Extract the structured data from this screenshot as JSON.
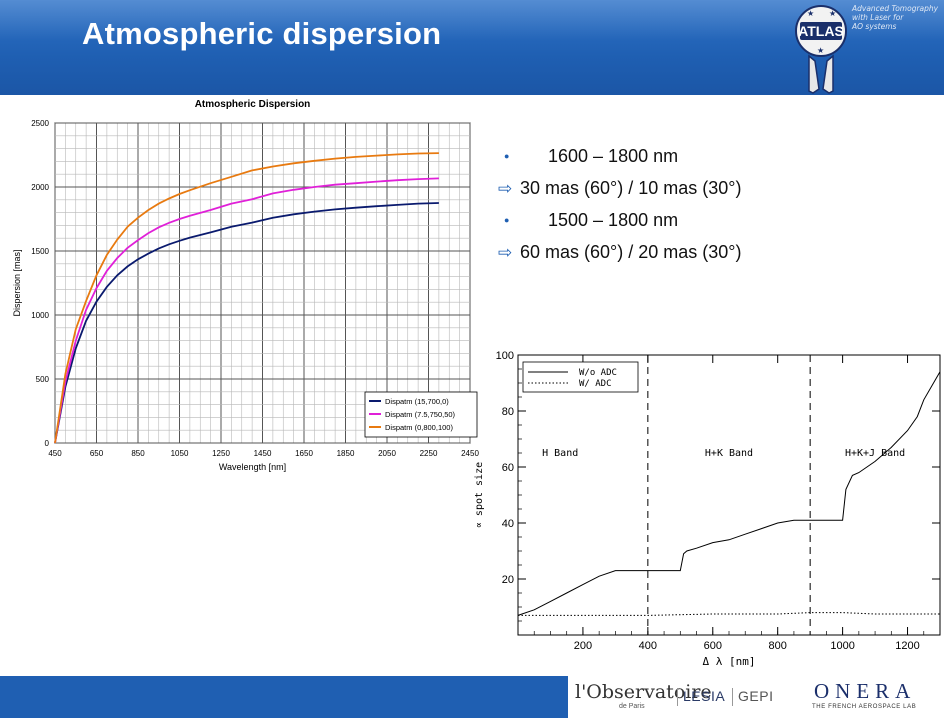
{
  "slide": {
    "title": "Atmospheric dispersion",
    "logo_tagline": [
      "Advanced Tomography",
      "with Laser for",
      "AO systems"
    ],
    "logo_text": "ATLAS",
    "bullets": [
      {
        "type": "bullet",
        "text": "1600 – 1800 nm"
      },
      {
        "type": "arrow",
        "text": "30 mas (60°) / 10 mas (30°)"
      },
      {
        "type": "bullet",
        "text": "1500 – 1800 nm"
      },
      {
        "type": "arrow",
        "text": "60 mas (60°) / 20 mas (30°)"
      }
    ],
    "footer": {
      "observatoire": "l'Observatoire",
      "observatoire_sub": "de Paris",
      "lesia": "LESIA",
      "gepi": "GEPI",
      "onera": "ONERA",
      "onera_sub": "THE FRENCH AEROSPACE LAB"
    },
    "colors": {
      "header": "#1f5fb2",
      "accent": "#1f5fb2"
    }
  },
  "chart_data": [
    {
      "type": "line",
      "title": "Atmospheric Dispersion",
      "xlabel": "Wavelength [nm]",
      "ylabel": "Dispersion [mas]",
      "xlim": [
        450,
        2450
      ],
      "ylim": [
        0,
        2500
      ],
      "xticks": [
        450,
        650,
        850,
        1050,
        1250,
        1450,
        1650,
        1850,
        2050,
        2250,
        2450
      ],
      "yticks": [
        0,
        500,
        1000,
        1500,
        2000,
        2500
      ],
      "grid": true,
      "legend_position": "bottom-right",
      "x": [
        450,
        500,
        550,
        600,
        650,
        700,
        750,
        800,
        850,
        900,
        950,
        1000,
        1050,
        1100,
        1200,
        1300,
        1400,
        1500,
        1600,
        1700,
        1800,
        1900,
        2000,
        2100,
        2200,
        2300
      ],
      "series": [
        {
          "name": "Dispatm (15,700,0)",
          "color": "#0a1a6e",
          "values": [
            0,
            440,
            740,
            955,
            1105,
            1220,
            1310,
            1380,
            1435,
            1480,
            1520,
            1552,
            1580,
            1605,
            1645,
            1690,
            1722,
            1760,
            1787,
            1808,
            1825,
            1838,
            1850,
            1860,
            1870,
            1875
          ]
        },
        {
          "name": "Dispatm (7.5,750,50)",
          "color": "#e020d8",
          "values": [
            0,
            480,
            800,
            1040,
            1210,
            1345,
            1445,
            1525,
            1585,
            1640,
            1685,
            1720,
            1750,
            1775,
            1820,
            1870,
            1905,
            1950,
            1978,
            2000,
            2018,
            2030,
            2042,
            2053,
            2062,
            2067
          ]
        },
        {
          "name": "Dispatm (0,800,100)",
          "color": "#e87a10",
          "values": [
            0,
            540,
            890,
            1110,
            1310,
            1470,
            1590,
            1690,
            1760,
            1820,
            1870,
            1910,
            1945,
            1975,
            2030,
            2080,
            2130,
            2160,
            2185,
            2205,
            2222,
            2235,
            2245,
            2255,
            2262,
            2265
          ]
        }
      ]
    },
    {
      "type": "line",
      "title": "",
      "xlabel": "Δ λ [nm]",
      "ylabel": "∝ spot size",
      "xlim": [
        0,
        1300
      ],
      "ylim": [
        0,
        100
      ],
      "xticks": [
        200,
        400,
        600,
        800,
        1000,
        1200
      ],
      "yticks": [
        20,
        40,
        60,
        80,
        100
      ],
      "legend_position": "top-left",
      "regions": [
        {
          "label": "H Band",
          "x": 130
        },
        {
          "label": "H+K Band",
          "x": 650
        },
        {
          "label": "H+K+J Band",
          "x": 1100
        }
      ],
      "vlines": [
        400,
        900
      ],
      "series": [
        {
          "name": "W/o ADC",
          "style": "solid",
          "color": "#000000",
          "x": [
            0,
            50,
            100,
            150,
            200,
            250,
            300,
            350,
            400,
            450,
            500,
            510,
            520,
            550,
            600,
            650,
            700,
            750,
            800,
            850,
            900,
            950,
            1000,
            1010,
            1030,
            1050,
            1100,
            1150,
            1200,
            1230,
            1250,
            1280,
            1300
          ],
          "values": [
            7,
            9,
            12,
            15,
            18,
            21,
            23,
            23,
            23,
            23,
            23,
            29,
            30,
            31,
            33,
            34,
            36,
            38,
            40,
            41,
            41,
            41,
            41,
            52,
            57,
            58,
            62,
            67,
            73,
            78,
            84,
            90,
            94
          ]
        },
        {
          "name": "W/ ADC",
          "style": "dotted",
          "color": "#000000",
          "x": [
            0,
            200,
            400,
            600,
            800,
            900,
            1000,
            1100,
            1200,
            1300
          ],
          "values": [
            7,
            7,
            7,
            7.5,
            7.5,
            8,
            8,
            7.5,
            7.5,
            7.5
          ]
        }
      ]
    }
  ]
}
